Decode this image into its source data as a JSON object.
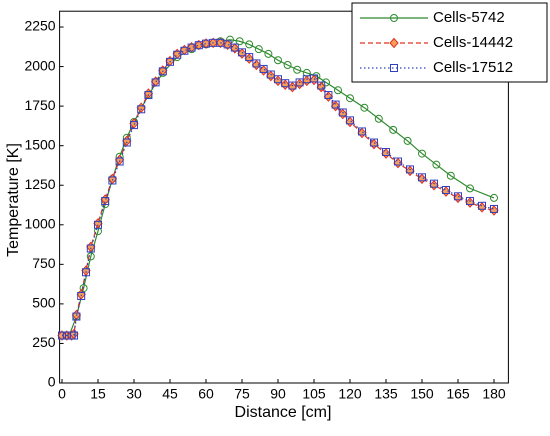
{
  "chart_data": {
    "type": "line",
    "xlabel": "Distance [cm]",
    "ylabel": "Temperature [K]",
    "xlim": [
      -1,
      186
    ],
    "ylim": [
      0,
      2350
    ],
    "xticks": [
      0,
      15,
      30,
      45,
      60,
      75,
      90,
      105,
      120,
      135,
      150,
      165,
      180
    ],
    "yticks": [
      0,
      250,
      500,
      750,
      1000,
      1250,
      1500,
      1750,
      2000,
      2250
    ],
    "series": [
      {
        "name": "Cells-5742",
        "color": "#2e8b2e",
        "marker": "circle",
        "dash": "none",
        "x": [
          0,
          3,
          6,
          9,
          12,
          15,
          18,
          21,
          24,
          27,
          30,
          36,
          42,
          48,
          54,
          60,
          66,
          70,
          74,
          78,
          82,
          86,
          90,
          94,
          98,
          102,
          106,
          110,
          115,
          120,
          126,
          132,
          138,
          144,
          150,
          156,
          162,
          170,
          180
        ],
        "values": [
          300,
          300,
          420,
          600,
          800,
          960,
          1130,
          1290,
          1430,
          1550,
          1650,
          1820,
          1960,
          2060,
          2110,
          2140,
          2160,
          2170,
          2160,
          2140,
          2110,
          2080,
          2040,
          2010,
          1980,
          1960,
          1940,
          1900,
          1850,
          1800,
          1740,
          1670,
          1600,
          1530,
          1450,
          1380,
          1310,
          1230,
          1170
        ]
      },
      {
        "name": "Cells-14442",
        "color": "#e03020",
        "marker": "diamond",
        "dash": "5,3",
        "x": [
          0,
          2,
          4,
          5,
          6,
          8,
          10,
          12,
          15,
          18,
          21,
          24,
          27,
          30,
          33,
          36,
          39,
          42,
          45,
          48,
          51,
          54,
          57,
          60,
          63,
          66,
          69,
          72,
          75,
          78,
          81,
          84,
          87,
          90,
          93,
          96,
          99,
          102,
          105,
          108,
          111,
          114,
          117,
          120,
          125,
          130,
          135,
          140,
          145,
          150,
          155,
          160,
          165,
          170,
          175,
          180
        ],
        "values": [
          300,
          300,
          300,
          310,
          430,
          560,
          710,
          860,
          1010,
          1160,
          1290,
          1410,
          1530,
          1640,
          1740,
          1830,
          1905,
          1975,
          2035,
          2080,
          2105,
          2122,
          2136,
          2146,
          2150,
          2150,
          2138,
          2115,
          2082,
          2050,
          2010,
          1975,
          1940,
          1910,
          1885,
          1870,
          1890,
          1910,
          1915,
          1870,
          1810,
          1750,
          1700,
          1650,
          1580,
          1510,
          1450,
          1390,
          1340,
          1290,
          1250,
          1210,
          1170,
          1140,
          1110,
          1090
        ]
      },
      {
        "name": "Cells-17512",
        "color": "#3040c0",
        "marker": "square",
        "dash": "1.5,2.5",
        "x": [
          0,
          2,
          4,
          5,
          6,
          8,
          10,
          12,
          15,
          18,
          21,
          24,
          27,
          30,
          33,
          36,
          39,
          42,
          45,
          48,
          51,
          54,
          57,
          60,
          63,
          66,
          69,
          72,
          75,
          78,
          81,
          84,
          87,
          90,
          93,
          96,
          99,
          102,
          105,
          108,
          111,
          114,
          117,
          120,
          125,
          130,
          135,
          140,
          145,
          150,
          155,
          160,
          165,
          170,
          175,
          180
        ],
        "values": [
          300,
          300,
          300,
          300,
          420,
          550,
          700,
          850,
          1000,
          1150,
          1280,
          1400,
          1520,
          1630,
          1730,
          1820,
          1900,
          1970,
          2030,
          2075,
          2100,
          2120,
          2135,
          2145,
          2150,
          2150,
          2140,
          2120,
          2090,
          2060,
          2020,
          1985,
          1950,
          1920,
          1895,
          1880,
          1900,
          1920,
          1925,
          1880,
          1820,
          1760,
          1710,
          1660,
          1590,
          1520,
          1460,
          1400,
          1350,
          1300,
          1260,
          1220,
          1180,
          1150,
          1120,
          1100
        ]
      }
    ]
  }
}
